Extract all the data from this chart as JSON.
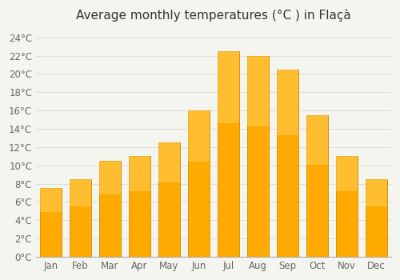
{
  "title": "Average monthly temperatures (°C ) in Flaçà",
  "months": [
    "Jan",
    "Feb",
    "Mar",
    "Apr",
    "May",
    "Jun",
    "Jul",
    "Aug",
    "Sep",
    "Oct",
    "Nov",
    "Dec"
  ],
  "values": [
    7.5,
    8.5,
    10.5,
    11.0,
    12.5,
    16.0,
    22.5,
    22.0,
    20.5,
    15.5,
    11.0,
    8.5
  ],
  "bar_color": "#FFAA00",
  "bar_edge_color": "#CC8800",
  "background_color": "#f5f5f0",
  "plot_bg_color": "#f5f5f0",
  "grid_color": "#dddddd",
  "yticks": [
    0,
    2,
    4,
    6,
    8,
    10,
    12,
    14,
    16,
    18,
    20,
    22,
    24
  ],
  "ylim": [
    0,
    25
  ],
  "title_fontsize": 11,
  "tick_fontsize": 8.5,
  "title_color": "#333333",
  "tick_color": "#666666"
}
